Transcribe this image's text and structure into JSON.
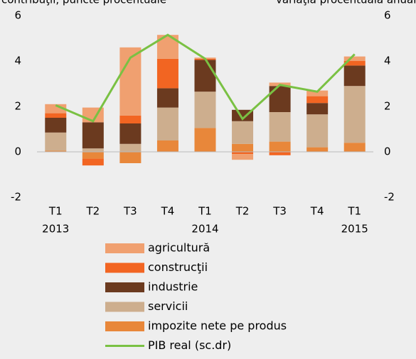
{
  "chart_data": {
    "type": "bar",
    "y_label": "contribuţii, puncte procentuale",
    "y2_label": "variaţia procentuală anuală",
    "categories": [
      [
        "T1",
        "2013"
      ],
      [
        "T2"
      ],
      [
        "T3"
      ],
      [
        "T4"
      ],
      [
        "T1",
        "2014"
      ],
      [
        "T2"
      ],
      [
        "T3"
      ],
      [
        "T4"
      ],
      [
        "T1",
        "2015"
      ]
    ],
    "series": [
      {
        "name": "impozite nete pe produs",
        "color": "#e8873a",
        "values": [
          0.05,
          -0.3,
          -0.5,
          0.5,
          1.05,
          0.35,
          0.45,
          0.2,
          0.4
        ]
      },
      {
        "name": "servicii",
        "color": "#cdae8e",
        "values": [
          0.8,
          0.15,
          0.35,
          1.45,
          1.6,
          1.0,
          1.3,
          1.45,
          2.5
        ]
      },
      {
        "name": "industrie",
        "color": "#6b3a1f",
        "values": [
          0.65,
          1.15,
          0.9,
          0.85,
          1.4,
          0.5,
          1.15,
          0.5,
          0.9
        ]
      },
      {
        "name": "construcţii",
        "color": "#f26522",
        "values": [
          0.2,
          -0.3,
          0.35,
          1.3,
          0.05,
          -0.1,
          -0.15,
          0.3,
          0.2
        ]
      },
      {
        "name": "agricultură",
        "color": "#f0a070",
        "values": [
          0.4,
          0.65,
          3.0,
          1.05,
          0.05,
          -0.25,
          0.15,
          0.25,
          0.2
        ]
      },
      {
        "name": "PIB real (sc.dr)",
        "color": "#7ac143",
        "type": "line",
        "axis": "y2",
        "values": [
          2.05,
          1.35,
          4.15,
          5.15,
          4.1,
          1.45,
          2.95,
          2.65,
          4.3
        ]
      }
    ],
    "ylim": [
      -2,
      6
    ],
    "yticks": [
      -2,
      0,
      2,
      4,
      6
    ],
    "y2lim": [
      -2,
      6
    ],
    "y2ticks": [
      -2,
      0,
      2,
      4,
      6
    ]
  }
}
